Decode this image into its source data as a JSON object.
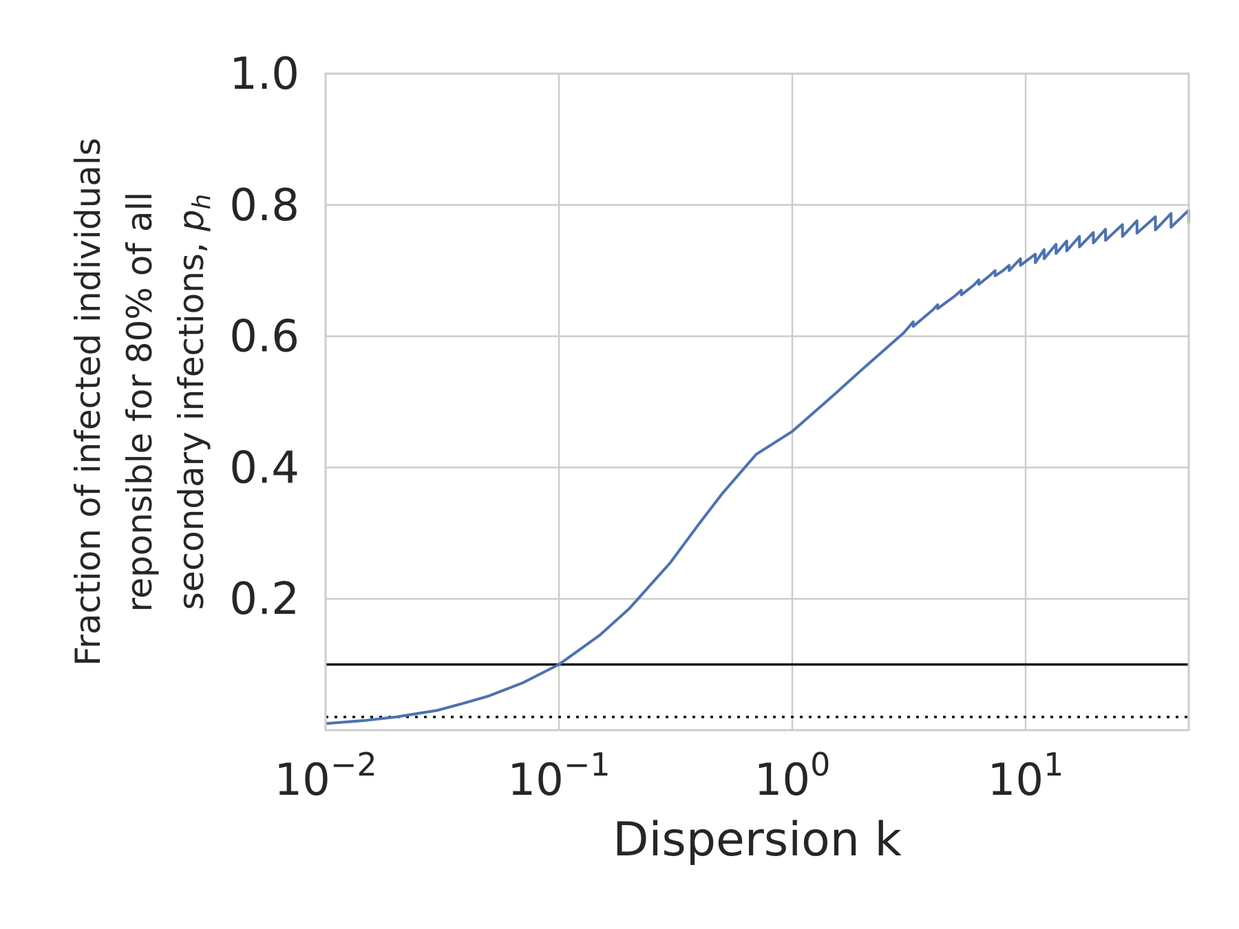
{
  "chart_data": {
    "type": "line",
    "title": "",
    "xlabel": "Dispersion k",
    "ylabel_lines": [
      "Fraction of infected individuals",
      "reponsible for 80% of all",
      "secondary infections, "
    ],
    "ylabel_symbol": "p",
    "ylabel_subscript": "h",
    "x_scale": "log",
    "xlim": [
      0.01,
      50
    ],
    "ylim": [
      0.0,
      1.0
    ],
    "grid": true,
    "x_ticks": [
      {
        "value": 0.01,
        "base": "10",
        "exp": "−2"
      },
      {
        "value": 0.1,
        "base": "10",
        "exp": "−1"
      },
      {
        "value": 1,
        "base": "10",
        "exp": "0"
      },
      {
        "value": 10,
        "base": "10",
        "exp": "1"
      }
    ],
    "y_ticks": [
      {
        "value": 0.2,
        "label": "0.2"
      },
      {
        "value": 0.4,
        "label": "0.4"
      },
      {
        "value": 0.6,
        "label": "0.6"
      },
      {
        "value": 0.8,
        "label": "0.8"
      },
      {
        "value": 1.0,
        "label": "1.0"
      }
    ],
    "series": [
      {
        "color": "#4c72b0",
        "x": [
          0.01,
          0.015,
          0.02,
          0.03,
          0.04,
          0.05,
          0.07,
          0.1,
          0.15,
          0.2,
          0.3,
          0.4,
          0.5,
          0.7,
          1.0,
          1.5,
          2.0,
          3.0,
          3.3,
          3.3,
          4.0,
          4.2,
          4.2,
          5.0,
          5.3,
          5.3,
          6.0,
          6.3,
          6.3,
          7.0,
          7.4,
          7.4,
          8.0,
          8.5,
          8.5,
          9.5,
          9.5,
          11.0,
          11.0,
          12.0,
          12.0,
          13.5,
          13.5,
          15.0,
          15.0,
          17.0,
          17.0,
          19.5,
          19.5,
          22.0,
          22.0,
          26.0,
          26.0,
          30.0,
          30.0,
          36.0,
          36.0,
          42.0,
          42.0,
          50.0,
          50.0
        ],
        "y": [
          0.01,
          0.015,
          0.02,
          0.03,
          0.042,
          0.052,
          0.072,
          0.1,
          0.145,
          0.185,
          0.255,
          0.315,
          0.36,
          0.42,
          0.455,
          0.51,
          0.55,
          0.605,
          0.622,
          0.615,
          0.64,
          0.648,
          0.642,
          0.662,
          0.67,
          0.663,
          0.678,
          0.686,
          0.679,
          0.692,
          0.7,
          0.692,
          0.7,
          0.708,
          0.7,
          0.718,
          0.708,
          0.725,
          0.712,
          0.732,
          0.718,
          0.74,
          0.726,
          0.745,
          0.73,
          0.752,
          0.736,
          0.758,
          0.742,
          0.763,
          0.746,
          0.77,
          0.752,
          0.776,
          0.757,
          0.782,
          0.762,
          0.787,
          0.766,
          0.792,
          0.772
        ]
      }
    ],
    "hlines": [
      {
        "y": 0.1,
        "style": "solid",
        "color": "#111111"
      },
      {
        "y": 0.02,
        "style": "dotted",
        "color": "#111111"
      }
    ]
  }
}
